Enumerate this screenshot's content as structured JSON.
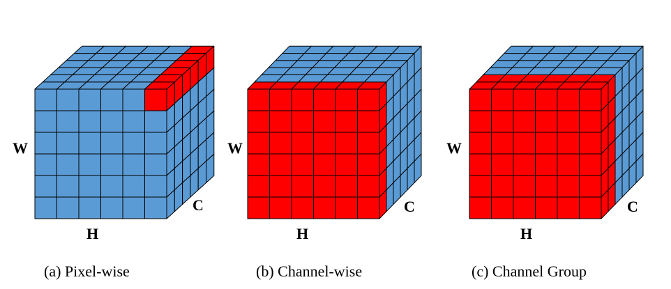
{
  "colors": {
    "base": "#5b9bd5",
    "highlight": "#ff0000",
    "grid": "#000000"
  },
  "grid_size": 6,
  "diagrams": [
    {
      "id": "pixel-wise",
      "axis_w": "W",
      "axis_h": "H",
      "axis_c": "C",
      "caption": "(a) Pixel-wise",
      "highlight": "pixel"
    },
    {
      "id": "channel-wise",
      "axis_w": "W",
      "axis_h": "H",
      "axis_c": "C",
      "caption": "(b) Channel-wise",
      "highlight": "channel"
    },
    {
      "id": "channel-group",
      "axis_w": "W",
      "axis_h": "H",
      "axis_c": "C",
      "caption": "(c) Channel Group",
      "highlight": "group"
    }
  ]
}
